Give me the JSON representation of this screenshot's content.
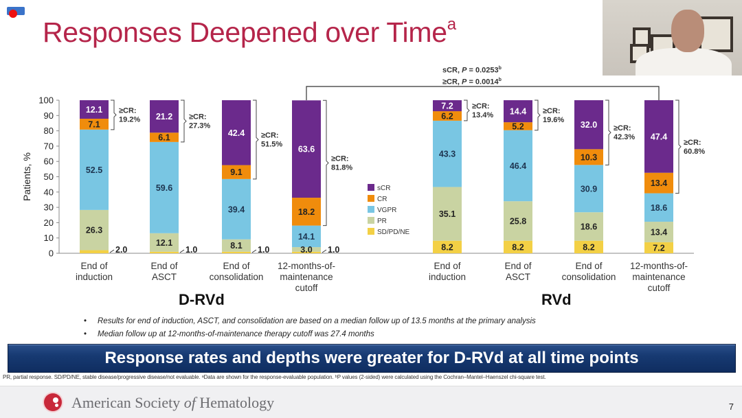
{
  "slide": {
    "title": "Responses Deepened over Time",
    "title_sup": "a",
    "pvalues": {
      "line1_prefix": "sCR, ",
      "line1_p": "P",
      "line1_value": " = 0.0253",
      "line1_sup": "b",
      "line2_prefix": "≥CR, ",
      "line2_p": "P",
      "line2_value": " = 0.0014",
      "line2_sup": "b"
    },
    "bullets": [
      "Results for end of induction, ASCT, and consolidation are based on a median follow up of 13.5 months at the primary analysis",
      "Median follow up at 12-months-of-maintenance therapy cutoff was 27.4 months"
    ],
    "banner": "Response rates and depths were greater for D-RVd at all time points",
    "footnote": "PR, partial response. SD/PD/NE, stable disease/progressive disease/not evaluable. ᵃData are shown for the response-evaluable population. ᵇP values (2-sided) were calculated using the Cochran–Mantel–Haenszel chi-square test.",
    "footer": {
      "org_prefix": "American Society ",
      "org_of": "of",
      "org_suffix": " Hematology",
      "slide_number": "7"
    },
    "recording_indicator": "recording-icon",
    "webcam": "presenter-video"
  },
  "chart_data": {
    "type": "bar",
    "stacked": true,
    "title": "Responses Deepened over Time",
    "ylabel": "Patients, %",
    "xlabel": "",
    "ylim": [
      0,
      100
    ],
    "yticks": [
      0,
      10,
      20,
      30,
      40,
      50,
      60,
      70,
      80,
      90,
      100
    ],
    "grid": false,
    "legend_position": "center",
    "series_names": [
      "SD/PD/NE",
      "PR",
      "VGPR",
      "CR",
      "sCR"
    ],
    "legend": [
      "sCR",
      "CR",
      "VGPR",
      "PR",
      "SD/PD/NE"
    ],
    "colors": {
      "sCR": "#6b2a8c",
      "CR": "#f08c0c",
      "VGPR": "#79c6e3",
      "PR": "#c9d3a2",
      "SD/PD/NE": "#f3d045"
    },
    "label_colors": {
      "sCR": "#ffffff",
      "CR": "#222222",
      "VGPR": "#1e3550",
      "PR": "#222222",
      "SD/PD/NE": "#222222"
    },
    "groups": [
      {
        "name": "D-RVd",
        "bars": [
          {
            "label": [
              "End of",
              "induction"
            ],
            "SD/PD/NE": 2.0,
            "PR": 26.3,
            "VGPR": 52.5,
            "CR": 7.1,
            "sCR": 12.1,
            "geCR": "19.2%",
            "outside_label": "2.0"
          },
          {
            "label": [
              "End of",
              "ASCT"
            ],
            "SD/PD/NE": 1.0,
            "PR": 12.1,
            "VGPR": 59.6,
            "CR": 6.1,
            "sCR": 21.2,
            "geCR": "27.3%",
            "outside_label": "1.0"
          },
          {
            "label": [
              "End of",
              "consolidation"
            ],
            "SD/PD/NE": 1.0,
            "PR": 8.1,
            "VGPR": 39.4,
            "CR": 9.1,
            "sCR": 42.4,
            "geCR": "51.5%",
            "outside_label": "1.0"
          },
          {
            "label": [
              "12-months-of-",
              "maintenance",
              "cutoff"
            ],
            "SD/PD/NE": 1.0,
            "PR": 3.0,
            "VGPR": 14.1,
            "CR": 18.2,
            "sCR": 63.6,
            "geCR": "81.8%",
            "outside_label": "1.0"
          }
        ]
      },
      {
        "name": "RVd",
        "bars": [
          {
            "label": [
              "End of",
              "induction"
            ],
            "SD/PD/NE": 8.2,
            "PR": 35.1,
            "VGPR": 43.3,
            "CR": 6.2,
            "sCR": 7.2,
            "geCR": "13.4%"
          },
          {
            "label": [
              "End of",
              "ASCT"
            ],
            "SD/PD/NE": 8.2,
            "PR": 25.8,
            "VGPR": 46.4,
            "CR": 5.2,
            "sCR": 14.4,
            "geCR": "19.6%"
          },
          {
            "label": [
              "End of",
              "consolidation"
            ],
            "SD/PD/NE": 8.2,
            "PR": 18.6,
            "VGPR": 30.9,
            "CR": 10.3,
            "sCR": 32.0,
            "geCR": "42.3%"
          },
          {
            "label": [
              "12-months-of-",
              "maintenance",
              "cutoff"
            ],
            "SD/PD/NE": 7.2,
            "PR": 13.4,
            "VGPR": 18.6,
            "CR": 13.4,
            "sCR": 47.4,
            "geCR": "60.8%"
          }
        ]
      }
    ],
    "geCR_prefix": "≥CR:",
    "comparison_bracket": {
      "from": "D-RVd 12-months-of-maintenance cutoff",
      "to": "RVd 12-months-of-maintenance cutoff"
    }
  }
}
